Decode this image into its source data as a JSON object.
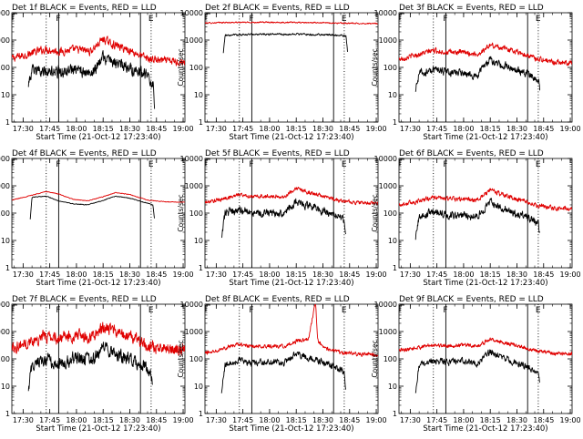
{
  "chart_data": {
    "type": "line",
    "colors": {
      "events": "#000000",
      "lld": "#e00000"
    },
    "y_scale": "log",
    "ylim": [
      1,
      10000
    ],
    "y_ticks": [
      1,
      10,
      100,
      1000,
      10000
    ],
    "y_tick_labels": [
      "1",
      "10",
      "100",
      "1000",
      "10000"
    ],
    "x_tick_labels": [
      "17:30",
      "17:45",
      "18:00",
      "18:15",
      "18:30",
      "18:45",
      "19:00"
    ],
    "xlabel": "Start Time (21-Oct-12 17:23:40)",
    "ylabel": "Counts/sec",
    "panels": [
      {
        "title": "Det 1f BLACK = Events, RED = LLD",
        "dotted": [
          "17:43",
          "18:42"
        ],
        "solid": [
          "17:50",
          "18:36"
        ],
        "markers": [
          {
            "t": "17:50",
            "label": "F"
          },
          {
            "t": "18:42",
            "label": "E"
          }
        ],
        "lld": {
          "t": [
            "17:23:40",
            "17:33",
            "17:43",
            "17:50",
            "18:00",
            "18:08",
            "18:15",
            "18:20",
            "18:30",
            "18:40",
            "18:50",
            "19:01"
          ],
          "v": [
            210,
            310,
            470,
            380,
            450,
            390,
            1100,
            720,
            420,
            210,
            170,
            160
          ],
          "noise": 0.12
        },
        "events": {
          "t": [
            "17:33",
            "17:35",
            "17:43",
            "17:50",
            "18:00",
            "18:08",
            "18:15",
            "18:22",
            "18:30",
            "18:40",
            "18:43",
            "18:44"
          ],
          "v": [
            25,
            70,
            75,
            65,
            85,
            55,
            220,
            140,
            100,
            50,
            25,
            4
          ],
          "noise": 0.18
        }
      },
      {
        "title": "Det 2f BLACK = Events, RED = LLD",
        "dotted": [
          "17:43",
          "18:42"
        ],
        "solid": [
          "17:50",
          "18:36"
        ],
        "markers": [
          {
            "t": "17:50",
            "label": "F"
          },
          {
            "t": "18:42",
            "label": "E"
          }
        ],
        "lld": {
          "t": [
            "17:23:40",
            "17:35",
            "18:00",
            "18:30",
            "18:45",
            "19:01"
          ],
          "v": [
            4200,
            4400,
            4500,
            4300,
            4100,
            4000
          ],
          "noise": 0.02
        },
        "events": {
          "t": [
            "17:34",
            "17:35",
            "17:50",
            "18:15",
            "18:35",
            "18:43",
            "18:44"
          ],
          "v": [
            350,
            1500,
            1600,
            1650,
            1550,
            1400,
            300
          ],
          "noise": 0.03
        }
      },
      {
        "title": "Det 3f BLACK = Events, RED = LLD",
        "dotted": [
          "17:43",
          "18:42"
        ],
        "solid": [
          "17:50",
          "18:36"
        ],
        "markers": [
          {
            "t": "17:50",
            "label": "F"
          },
          {
            "t": "18:42",
            "label": "E"
          }
        ],
        "lld": {
          "t": [
            "17:23:40",
            "17:33",
            "17:43",
            "17:50",
            "18:00",
            "18:08",
            "18:15",
            "18:22",
            "18:30",
            "18:40",
            "18:50",
            "19:01"
          ],
          "v": [
            200,
            280,
            420,
            360,
            350,
            300,
            650,
            520,
            380,
            220,
            160,
            150
          ],
          "noise": 0.08
        },
        "events": {
          "t": [
            "17:33",
            "17:35",
            "17:43",
            "17:50",
            "18:00",
            "18:08",
            "18:15",
            "18:22",
            "18:30",
            "18:38",
            "18:42",
            "18:43"
          ],
          "v": [
            15,
            60,
            80,
            70,
            60,
            50,
            190,
            120,
            80,
            50,
            40,
            15
          ],
          "noise": 0.12
        }
      },
      {
        "title": "Det 4f BLACK = Events, RED = LLD",
        "dotted": [
          "17:43",
          "18:42"
        ],
        "solid": [
          "17:50",
          "18:36"
        ],
        "markers": [
          {
            "t": "17:50",
            "label": "F"
          },
          {
            "t": "18:42",
            "label": "E"
          }
        ],
        "lld": {
          "t": [
            "17:23:40",
            "17:33",
            "17:43",
            "17:50",
            "17:58",
            "18:06",
            "18:14",
            "18:22",
            "18:30",
            "18:40",
            "18:50",
            "19:01"
          ],
          "v": [
            300,
            420,
            620,
            500,
            320,
            280,
            380,
            560,
            480,
            300,
            260,
            250
          ],
          "noise": 0.01
        },
        "events": {
          "t": [
            "17:34",
            "17:35",
            "17:43",
            "17:50",
            "17:58",
            "18:06",
            "18:14",
            "18:22",
            "18:30",
            "18:40",
            "18:43",
            "18:44"
          ],
          "v": [
            60,
            380,
            420,
            280,
            220,
            200,
            280,
            420,
            350,
            230,
            200,
            50
          ],
          "noise": 0.01
        }
      },
      {
        "title": "Det 5f BLACK = Events, RED = LLD",
        "dotted": [
          "17:43",
          "18:42"
        ],
        "solid": [
          "17:50",
          "18:36"
        ],
        "markers": [
          {
            "t": "17:50",
            "label": "F"
          },
          {
            "t": "18:42",
            "label": "E"
          }
        ],
        "lld": {
          "t": [
            "17:23:40",
            "17:33",
            "17:43",
            "17:50",
            "18:00",
            "18:08",
            "18:15",
            "18:22",
            "18:30",
            "18:40",
            "18:50",
            "19:01"
          ],
          "v": [
            240,
            320,
            480,
            400,
            420,
            380,
            850,
            560,
            420,
            280,
            240,
            230
          ],
          "noise": 0.06
        },
        "events": {
          "t": [
            "17:33",
            "17:35",
            "17:43",
            "17:50",
            "18:00",
            "18:08",
            "18:15",
            "18:22",
            "18:30",
            "18:38",
            "18:42",
            "18:43"
          ],
          "v": [
            15,
            100,
            130,
            110,
            100,
            90,
            260,
            180,
            120,
            80,
            55,
            10
          ],
          "noise": 0.12
        }
      },
      {
        "title": "Det 6f BLACK = Events, RED = LLD",
        "dotted": [
          "17:43",
          "18:42"
        ],
        "solid": [
          "17:50",
          "18:36"
        ],
        "markers": [
          {
            "t": "17:50",
            "label": "F"
          },
          {
            "t": "18:42",
            "label": "E"
          }
        ],
        "lld": {
          "t": [
            "17:23:40",
            "17:33",
            "17:43",
            "17:50",
            "18:00",
            "18:08",
            "18:15",
            "18:22",
            "18:30",
            "18:40",
            "18:50",
            "19:01"
          ],
          "v": [
            200,
            260,
            380,
            340,
            320,
            300,
            700,
            480,
            320,
            200,
            150,
            140
          ],
          "noise": 0.07
        },
        "events": {
          "t": [
            "17:33",
            "17:35",
            "17:43",
            "17:50",
            "18:00",
            "18:08",
            "18:15",
            "18:22",
            "18:30",
            "18:38",
            "18:42",
            "18:43"
          ],
          "v": [
            12,
            80,
            110,
            90,
            80,
            75,
            260,
            150,
            90,
            60,
            40,
            15
          ],
          "noise": 0.12
        }
      },
      {
        "title": "Det 7f BLACK = Events, RED = LLD",
        "dotted": [
          "17:43",
          "18:42"
        ],
        "solid": [
          "17:50",
          "18:36"
        ],
        "markers": [
          {
            "t": "17:50",
            "label": "F"
          },
          {
            "t": "18:42",
            "label": "E"
          }
        ],
        "lld": {
          "t": [
            "17:23:40",
            "17:33",
            "17:43",
            "17:50",
            "18:00",
            "18:08",
            "18:15",
            "18:22",
            "18:30",
            "18:40",
            "18:50",
            "19:01"
          ],
          "v": [
            260,
            400,
            700,
            550,
            700,
            600,
            1400,
            950,
            650,
            300,
            220,
            200
          ],
          "noise": 0.18
        },
        "events": {
          "t": [
            "17:33",
            "17:35",
            "17:43",
            "17:50",
            "18:00",
            "18:08",
            "18:15",
            "18:22",
            "18:30",
            "18:38",
            "18:42",
            "18:43"
          ],
          "v": [
            8,
            60,
            90,
            70,
            110,
            90,
            280,
            150,
            90,
            55,
            30,
            6
          ],
          "noise": 0.2
        }
      },
      {
        "title": "Det 8f BLACK = Events, RED = LLD",
        "dotted": [
          "17:43",
          "18:42"
        ],
        "solid": [
          "17:50",
          "18:36"
        ],
        "markers": [
          {
            "t": "17:50",
            "label": "F"
          },
          {
            "t": "18:42",
            "label": "E"
          }
        ],
        "lld": {
          "t": [
            "17:23:40",
            "17:33",
            "17:43",
            "17:50",
            "18:00",
            "18:08",
            "18:15",
            "18:22",
            "18:25",
            "18:26",
            "18:27",
            "18:30",
            "18:40",
            "18:50",
            "19:01"
          ],
          "v": [
            160,
            240,
            340,
            280,
            300,
            280,
            450,
            550,
            7000,
            9000,
            500,
            260,
            170,
            150,
            140
          ],
          "noise": 0.06
        },
        "events": {
          "t": [
            "17:33",
            "17:35",
            "17:43",
            "17:50",
            "18:00",
            "18:08",
            "18:15",
            "18:22",
            "18:30",
            "18:38",
            "18:42",
            "18:43"
          ],
          "v": [
            6,
            60,
            90,
            70,
            80,
            70,
            160,
            110,
            80,
            45,
            30,
            5
          ],
          "noise": 0.1
        }
      },
      {
        "title": "Det 9f BLACK = Events, RED = LLD",
        "dotted": [
          "17:43",
          "18:42"
        ],
        "solid": [
          "17:50",
          "18:36"
        ],
        "markers": [
          {
            "t": "17:50",
            "label": "F"
          },
          {
            "t": "18:42",
            "label": "E"
          }
        ],
        "lld": {
          "t": [
            "17:23:40",
            "17:33",
            "17:43",
            "17:50",
            "18:00",
            "18:08",
            "18:15",
            "18:22",
            "18:30",
            "18:40",
            "18:50",
            "19:01"
          ],
          "v": [
            200,
            250,
            330,
            300,
            320,
            290,
            520,
            400,
            300,
            200,
            160,
            150
          ],
          "noise": 0.06
        },
        "events": {
          "t": [
            "17:33",
            "17:35",
            "17:43",
            "17:50",
            "18:00",
            "18:08",
            "18:15",
            "18:22",
            "18:30",
            "18:38",
            "18:42",
            "18:43"
          ],
          "v": [
            6,
            60,
            85,
            75,
            80,
            70,
            180,
            110,
            70,
            45,
            30,
            10
          ],
          "noise": 0.1
        }
      }
    ]
  }
}
